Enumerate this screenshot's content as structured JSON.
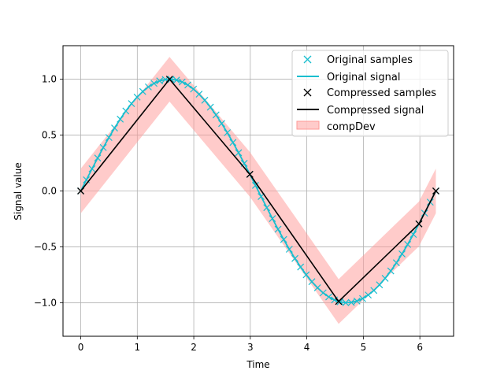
{
  "chart_data": {
    "type": "line",
    "xlabel": "Time",
    "ylabel": "Signal value",
    "xlim": [
      -0.314,
      6.597
    ],
    "ylim": [
      -1.3,
      1.3
    ],
    "xticks": [
      0,
      1,
      2,
      3,
      4,
      5,
      6
    ],
    "yticks": [
      -1.0,
      -0.5,
      0.0,
      0.5,
      1.0
    ],
    "xtick_labels": [
      "0",
      "1",
      "2",
      "3",
      "4",
      "5",
      "6"
    ],
    "ytick_labels": [
      "−1.0",
      "−0.5",
      "0.0",
      "0.5",
      "1.0"
    ],
    "grid": true,
    "legend_position": "top-right",
    "original_samples": {
      "count": 64,
      "x_start": 0,
      "x_end": 6.2832,
      "function": "sin"
    },
    "compressed_samples": {
      "x": [
        0,
        1.5708,
        2.992,
        4.5628,
        5.984,
        6.2832
      ],
      "y": [
        0,
        1.0,
        0.149,
        -0.9888,
        -0.2948,
        0
      ]
    },
    "comp_dev": 0.2,
    "colors": {
      "original": "#17becf",
      "compressed": "#000000",
      "band": "#ff9896"
    },
    "series": [
      {
        "key": "orig_samples",
        "name": "Original samples"
      },
      {
        "key": "orig_signal",
        "name": "Original signal"
      },
      {
        "key": "comp_samples",
        "name": "Compressed samples"
      },
      {
        "key": "comp_signal",
        "name": "Compressed signal"
      },
      {
        "key": "band",
        "name": "compDev"
      }
    ]
  }
}
